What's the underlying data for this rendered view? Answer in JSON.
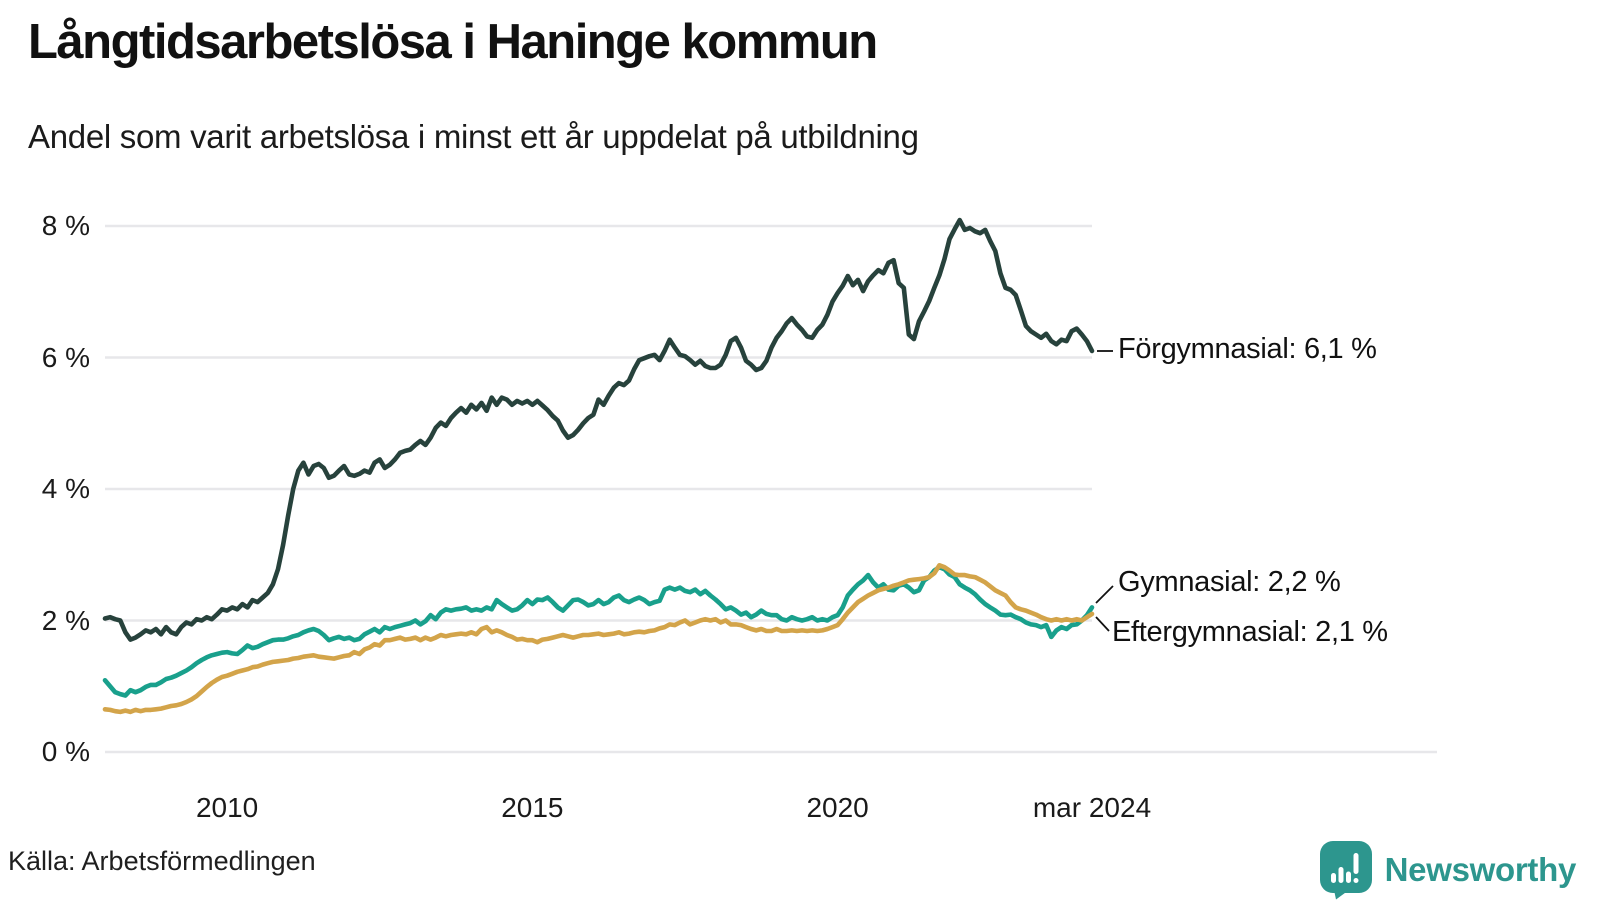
{
  "header": {
    "title": "Långtidsarbetslösa i Haninge kommun",
    "subtitle": "Andel som varit arbetslösa i minst ett år uppdelat på utbildning"
  },
  "footer": {
    "source": "Källa: Arbetsförmedlingen",
    "brand": "Newsworthy"
  },
  "colors": {
    "forgymnasial": "#27423c",
    "gymnasial": "#19a08c",
    "eftergymnasial": "#d3a44a",
    "gridline": "#e7e7ea",
    "brand_teal": "#2d968e"
  },
  "chart_data": {
    "type": "line",
    "title": "Långtidsarbetslösa i Haninge kommun",
    "subtitle": "Andel som varit arbetslösa i minst ett år uppdelat på utbildning",
    "xlabel": "",
    "ylabel": "",
    "x_unit": "months",
    "x_start_decimal_year": 2008.0,
    "x_end_decimal_year": 2024.1667,
    "x_start": "jan 2008",
    "x_end": "mar 2024",
    "ylim": [
      0,
      8.5
    ],
    "grid": "horizontal",
    "legend_position": "right-end-labels",
    "y_ticks": [
      {
        "v": 8,
        "label": "8 %"
      },
      {
        "v": 6,
        "label": "6 %"
      },
      {
        "v": 4,
        "label": "4 %"
      },
      {
        "v": 2,
        "label": "2 %"
      },
      {
        "v": 0,
        "label": "0 %"
      }
    ],
    "x_ticks": [
      {
        "t": 2010,
        "label": "2010"
      },
      {
        "t": 2015,
        "label": "2015"
      },
      {
        "t": 2020,
        "label": "2020"
      },
      {
        "t": 2024.1667,
        "label": "mar 2024"
      }
    ],
    "series": [
      {
        "name": "Förgymnasial",
        "end_label": "Förgymnasial: 6,1 %",
        "end_value": "6,1 %",
        "color": "#27423c",
        "values": [
          2.03,
          2.05,
          2.02,
          2.0,
          1.82,
          1.71,
          1.74,
          1.79,
          1.85,
          1.82,
          1.87,
          1.79,
          1.9,
          1.82,
          1.79,
          1.9,
          1.97,
          1.94,
          2.02,
          2.0,
          2.05,
          2.02,
          2.09,
          2.17,
          2.15,
          2.2,
          2.17,
          2.25,
          2.2,
          2.31,
          2.28,
          2.35,
          2.42,
          2.55,
          2.78,
          3.15,
          3.6,
          4.0,
          4.28,
          4.4,
          4.22,
          4.35,
          4.38,
          4.32,
          4.17,
          4.2,
          4.28,
          4.35,
          4.22,
          4.2,
          4.23,
          4.28,
          4.25,
          4.4,
          4.45,
          4.32,
          4.37,
          4.45,
          4.55,
          4.58,
          4.6,
          4.67,
          4.73,
          4.67,
          4.78,
          4.93,
          5.01,
          4.96,
          5.08,
          5.16,
          5.23,
          5.16,
          5.28,
          5.21,
          5.31,
          5.19,
          5.39,
          5.28,
          5.39,
          5.36,
          5.28,
          5.34,
          5.3,
          5.34,
          5.28,
          5.34,
          5.27,
          5.2,
          5.11,
          5.04,
          4.89,
          4.78,
          4.82,
          4.9,
          5.0,
          5.08,
          5.13,
          5.36,
          5.28,
          5.42,
          5.54,
          5.61,
          5.58,
          5.65,
          5.82,
          5.96,
          5.99,
          6.02,
          6.04,
          5.96,
          6.1,
          6.27,
          6.15,
          6.04,
          6.02,
          5.96,
          5.89,
          5.95,
          5.87,
          5.84,
          5.84,
          5.89,
          6.04,
          6.25,
          6.3,
          6.15,
          5.95,
          5.89,
          5.81,
          5.84,
          5.95,
          6.15,
          6.3,
          6.4,
          6.52,
          6.6,
          6.5,
          6.42,
          6.32,
          6.3,
          6.42,
          6.5,
          6.65,
          6.85,
          6.98,
          7.09,
          7.24,
          7.1,
          7.18,
          7.01,
          7.16,
          7.25,
          7.33,
          7.28,
          7.44,
          7.48,
          7.13,
          7.06,
          6.35,
          6.28,
          6.55,
          6.7,
          6.86,
          7.06,
          7.25,
          7.5,
          7.8,
          7.95,
          8.09,
          7.94,
          7.97,
          7.92,
          7.89,
          7.94,
          7.77,
          7.62,
          7.28,
          7.06,
          7.03,
          6.95,
          6.72,
          6.48,
          6.4,
          6.35,
          6.3,
          6.36,
          6.25,
          6.2,
          6.27,
          6.25,
          6.4,
          6.44,
          6.35,
          6.25,
          6.1
        ]
      },
      {
        "name": "Gymnasial",
        "end_label": "Gymnasial: 2,2 %",
        "end_value": "2,2 %",
        "color": "#19a08c",
        "values": [
          1.09,
          1.0,
          0.91,
          0.88,
          0.86,
          0.94,
          0.91,
          0.94,
          0.99,
          1.02,
          1.02,
          1.06,
          1.11,
          1.13,
          1.16,
          1.2,
          1.24,
          1.29,
          1.35,
          1.4,
          1.44,
          1.47,
          1.49,
          1.51,
          1.52,
          1.5,
          1.49,
          1.55,
          1.62,
          1.58,
          1.6,
          1.64,
          1.67,
          1.7,
          1.71,
          1.71,
          1.73,
          1.76,
          1.78,
          1.82,
          1.85,
          1.87,
          1.84,
          1.78,
          1.7,
          1.73,
          1.75,
          1.72,
          1.74,
          1.7,
          1.72,
          1.79,
          1.83,
          1.87,
          1.82,
          1.9,
          1.87,
          1.9,
          1.92,
          1.94,
          1.96,
          2.0,
          1.94,
          1.99,
          2.08,
          2.02,
          2.12,
          2.17,
          2.15,
          2.17,
          2.18,
          2.2,
          2.15,
          2.17,
          2.15,
          2.2,
          2.17,
          2.31,
          2.25,
          2.2,
          2.15,
          2.17,
          2.23,
          2.31,
          2.25,
          2.32,
          2.31,
          2.35,
          2.28,
          2.2,
          2.15,
          2.23,
          2.31,
          2.32,
          2.28,
          2.23,
          2.25,
          2.31,
          2.25,
          2.28,
          2.35,
          2.38,
          2.31,
          2.28,
          2.32,
          2.35,
          2.31,
          2.25,
          2.28,
          2.3,
          2.47,
          2.5,
          2.47,
          2.5,
          2.45,
          2.43,
          2.47,
          2.4,
          2.45,
          2.38,
          2.32,
          2.25,
          2.17,
          2.2,
          2.15,
          2.09,
          2.12,
          2.05,
          2.09,
          2.15,
          2.1,
          2.08,
          2.08,
          2.02,
          2.0,
          2.05,
          2.02,
          2.0,
          2.02,
          2.05,
          2.0,
          2.02,
          2.0,
          2.05,
          2.08,
          2.2,
          2.38,
          2.47,
          2.55,
          2.61,
          2.69,
          2.58,
          2.5,
          2.55,
          2.47,
          2.46,
          2.53,
          2.55,
          2.5,
          2.43,
          2.46,
          2.61,
          2.66,
          2.76,
          2.81,
          2.78,
          2.7,
          2.66,
          2.55,
          2.5,
          2.46,
          2.4,
          2.32,
          2.25,
          2.2,
          2.15,
          2.09,
          2.08,
          2.09,
          2.05,
          2.02,
          1.97,
          1.94,
          1.93,
          1.9,
          1.93,
          1.75,
          1.85,
          1.9,
          1.87,
          1.93,
          1.94,
          2.0,
          2.08,
          2.2
        ]
      },
      {
        "name": "Eftergymnasial",
        "end_label": "Eftergymnasial: 2,1 %",
        "end_value": "2,1 %",
        "color": "#d3a44a",
        "values": [
          0.65,
          0.64,
          0.62,
          0.61,
          0.63,
          0.61,
          0.64,
          0.62,
          0.64,
          0.64,
          0.65,
          0.66,
          0.68,
          0.7,
          0.71,
          0.73,
          0.76,
          0.8,
          0.85,
          0.92,
          0.99,
          1.05,
          1.1,
          1.14,
          1.16,
          1.19,
          1.22,
          1.24,
          1.26,
          1.29,
          1.3,
          1.33,
          1.35,
          1.37,
          1.38,
          1.39,
          1.4,
          1.42,
          1.43,
          1.45,
          1.46,
          1.47,
          1.45,
          1.44,
          1.43,
          1.42,
          1.44,
          1.46,
          1.47,
          1.52,
          1.49,
          1.56,
          1.59,
          1.64,
          1.62,
          1.7,
          1.7,
          1.72,
          1.74,
          1.71,
          1.72,
          1.74,
          1.7,
          1.74,
          1.71,
          1.74,
          1.78,
          1.76,
          1.78,
          1.79,
          1.8,
          1.79,
          1.82,
          1.79,
          1.87,
          1.9,
          1.82,
          1.85,
          1.82,
          1.78,
          1.75,
          1.71,
          1.72,
          1.7,
          1.7,
          1.67,
          1.71,
          1.72,
          1.74,
          1.76,
          1.78,
          1.76,
          1.74,
          1.76,
          1.78,
          1.78,
          1.79,
          1.8,
          1.78,
          1.79,
          1.8,
          1.82,
          1.79,
          1.8,
          1.82,
          1.83,
          1.82,
          1.84,
          1.85,
          1.88,
          1.9,
          1.94,
          1.93,
          1.97,
          2.0,
          1.94,
          1.97,
          2.0,
          2.02,
          2.0,
          2.02,
          1.97,
          2.0,
          1.94,
          1.94,
          1.93,
          1.9,
          1.87,
          1.85,
          1.87,
          1.84,
          1.84,
          1.87,
          1.84,
          1.84,
          1.85,
          1.84,
          1.85,
          1.84,
          1.85,
          1.84,
          1.85,
          1.87,
          1.9,
          1.93,
          2.02,
          2.12,
          2.2,
          2.28,
          2.33,
          2.38,
          2.42,
          2.46,
          2.48,
          2.5,
          2.53,
          2.55,
          2.58,
          2.61,
          2.62,
          2.63,
          2.64,
          2.66,
          2.72,
          2.84,
          2.81,
          2.76,
          2.7,
          2.69,
          2.69,
          2.67,
          2.66,
          2.62,
          2.58,
          2.52,
          2.46,
          2.42,
          2.38,
          2.28,
          2.2,
          2.17,
          2.15,
          2.12,
          2.09,
          2.05,
          2.02,
          2.0,
          2.02,
          2.0,
          2.02,
          2.0,
          2.02,
          2.0,
          2.05,
          2.1
        ]
      }
    ]
  }
}
